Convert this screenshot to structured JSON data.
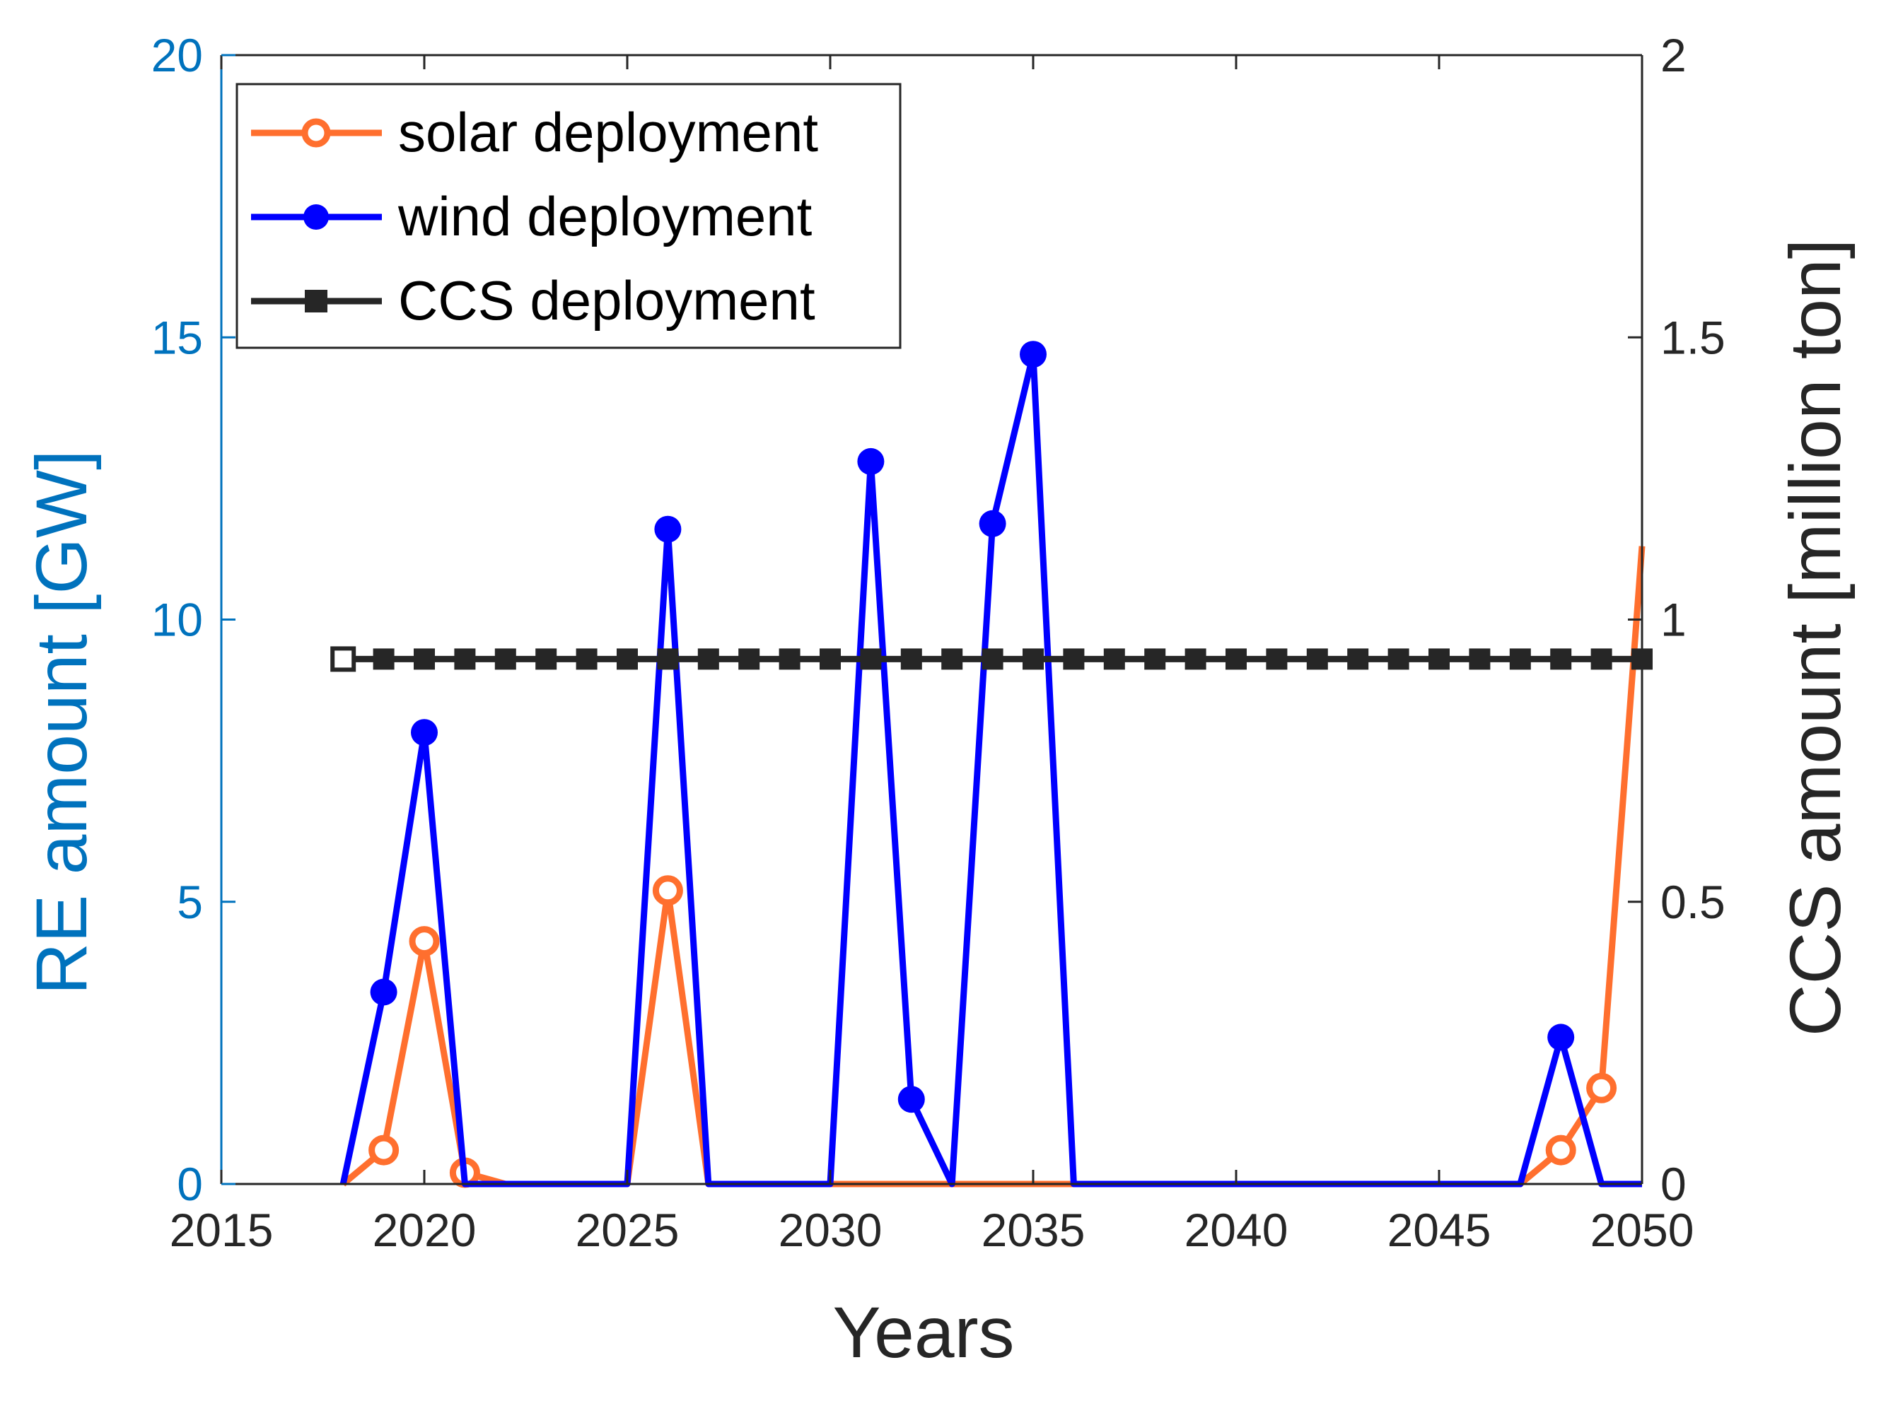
{
  "chart_data": {
    "type": "line",
    "title": "",
    "xlabel": "Years",
    "ylabel_left": "RE amount [GW]",
    "ylabel_right": "CCS amount [million ton]",
    "xlim": [
      2015,
      2050
    ],
    "ylim_left": [
      0,
      20
    ],
    "ylim_right": [
      0,
      2
    ],
    "x_ticks": [
      "2015",
      "2020",
      "2025",
      "2030",
      "2035",
      "2040",
      "2045",
      "2050"
    ],
    "y_ticks_left": [
      "0",
      "5",
      "10",
      "15",
      "20"
    ],
    "y_ticks_right": [
      "0",
      "0.5",
      "1",
      "1.5",
      "2"
    ],
    "grid": false,
    "legend_position": "top-left",
    "series": [
      {
        "name": "solar deployment",
        "axis": "left",
        "color": "#ff6f2e",
        "marker": "open-circle",
        "x": [
          2018,
          2019,
          2020,
          2021,
          2022,
          2023,
          2024,
          2025,
          2026,
          2027,
          2028,
          2029,
          2030,
          2031,
          2032,
          2033,
          2034,
          2035,
          2036,
          2037,
          2038,
          2039,
          2040,
          2041,
          2042,
          2043,
          2044,
          2045,
          2046,
          2047,
          2048,
          2049,
          2050
        ],
        "values": [
          0,
          0.6,
          4.3,
          0.2,
          0,
          0,
          0,
          0,
          5.2,
          0,
          0,
          0,
          0,
          0,
          0,
          0,
          0,
          0,
          0,
          0,
          0,
          0,
          0,
          0,
          0,
          0,
          0,
          0,
          0,
          0,
          0.6,
          1.7,
          11.3
        ],
        "marker_x": [
          2019,
          2020,
          2021,
          2026,
          2048,
          2049
        ]
      },
      {
        "name": "wind deployment",
        "axis": "left",
        "color": "#0000ff",
        "marker": "filled-circle",
        "x": [
          2018,
          2019,
          2020,
          2021,
          2022,
          2023,
          2024,
          2025,
          2026,
          2027,
          2028,
          2029,
          2030,
          2031,
          2032,
          2033,
          2034,
          2035,
          2036,
          2037,
          2038,
          2039,
          2040,
          2041,
          2042,
          2043,
          2044,
          2045,
          2046,
          2047,
          2048,
          2049,
          2050
        ],
        "values": [
          0,
          3.4,
          8.0,
          0,
          0,
          0,
          0,
          0,
          11.6,
          0,
          0,
          0,
          0,
          12.8,
          1.5,
          0,
          11.7,
          14.7,
          0,
          0,
          0,
          0,
          0,
          0,
          0,
          0,
          0,
          0,
          0,
          0,
          2.6,
          0,
          0
        ],
        "marker_x": [
          2019,
          2020,
          2026,
          2031,
          2032,
          2034,
          2035,
          2048
        ]
      },
      {
        "name": "CCS deployment",
        "axis": "right",
        "color": "#262626",
        "marker": "square",
        "x": [
          2018,
          2019,
          2020,
          2021,
          2022,
          2023,
          2024,
          2025,
          2026,
          2027,
          2028,
          2029,
          2030,
          2031,
          2032,
          2033,
          2034,
          2035,
          2036,
          2037,
          2038,
          2039,
          2040,
          2041,
          2042,
          2043,
          2044,
          2045,
          2046,
          2047,
          2048,
          2049,
          2050
        ],
        "values": [
          0.93,
          0.93,
          0.93,
          0.93,
          0.93,
          0.93,
          0.93,
          0.93,
          0.93,
          0.93,
          0.93,
          0.93,
          0.93,
          0.93,
          0.93,
          0.93,
          0.93,
          0.93,
          0.93,
          0.93,
          0.93,
          0.93,
          0.93,
          0.93,
          0.93,
          0.93,
          0.93,
          0.93,
          0.93,
          0.93,
          0.93,
          0.93,
          0.93
        ]
      }
    ],
    "colors": {
      "left_axis": "#0072bd",
      "right_axis": "#262626",
      "x_axis": "#262626"
    }
  }
}
